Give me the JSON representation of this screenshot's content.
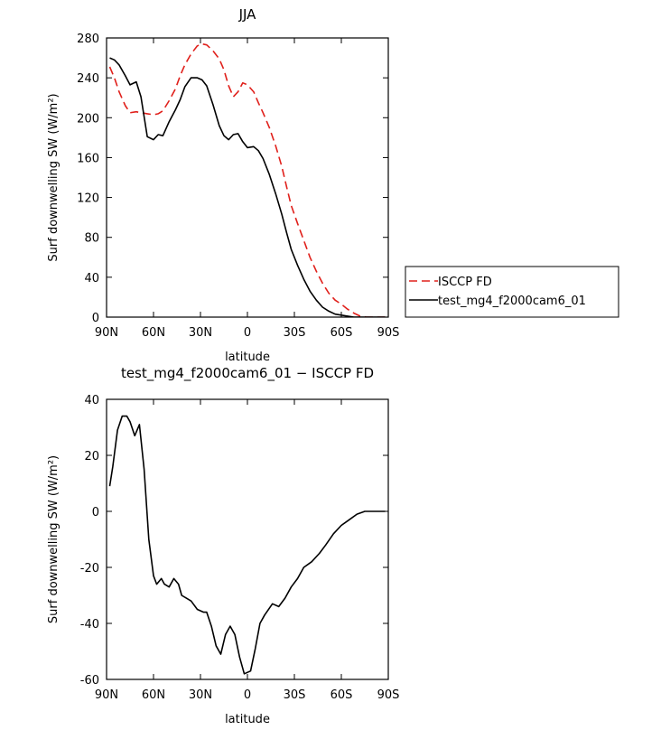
{
  "chart_data": [
    {
      "type": "line",
      "title": "JJA",
      "xlabel": "latitude",
      "ylabel": "Surf downwelling SW (W/m²)",
      "xlim": [
        90,
        -90
      ],
      "ylim": [
        0,
        280
      ],
      "xticks": [
        {
          "value": 90,
          "label": "90N"
        },
        {
          "value": 60,
          "label": "60N"
        },
        {
          "value": 30,
          "label": "30N"
        },
        {
          "value": 0,
          "label": "0"
        },
        {
          "value": -30,
          "label": "30S"
        },
        {
          "value": -60,
          "label": "60S"
        },
        {
          "value": -90,
          "label": "90S"
        }
      ],
      "yticks": [
        0,
        40,
        80,
        120,
        160,
        200,
        240,
        280
      ],
      "legend": "right",
      "series": [
        {
          "name": "ISCCP FD",
          "color": "#e0201b",
          "dash": "dashed",
          "x": [
            88,
            85,
            82,
            78,
            75,
            71,
            68,
            64,
            60,
            57,
            54,
            50,
            46,
            43,
            40,
            36,
            32,
            29,
            26,
            22,
            18,
            15,
            12,
            9,
            6,
            3,
            0,
            -4,
            -7,
            -10,
            -14,
            -18,
            -22,
            -25,
            -28,
            -32,
            -36,
            -40,
            -44,
            -48,
            -52,
            -56,
            -60,
            -64,
            -68,
            -72,
            -76,
            -80,
            -85,
            -88
          ],
          "y": [
            251,
            240,
            226,
            212,
            205,
            206,
            205,
            204,
            203,
            204,
            207,
            217,
            229,
            242,
            253,
            264,
            272,
            274,
            273,
            267,
            259,
            248,
            232,
            221,
            226,
            235,
            233,
            226,
            215,
            205,
            190,
            172,
            151,
            131,
            112,
            94,
            77,
            60,
            46,
            34,
            24,
            17,
            13,
            8,
            4,
            1,
            0,
            0,
            0,
            0
          ]
        },
        {
          "name": "test_mg4_f2000cam6_01",
          "color": "#000000",
          "dash": "solid",
          "x": [
            88,
            85,
            82,
            78,
            75,
            71,
            68,
            64,
            60,
            57,
            54,
            50,
            46,
            43,
            40,
            36,
            32,
            29,
            26,
            22,
            18,
            15,
            12,
            9,
            6,
            3,
            0,
            -4,
            -7,
            -10,
            -14,
            -18,
            -22,
            -25,
            -28,
            -32,
            -36,
            -40,
            -44,
            -48,
            -52,
            -56,
            -60,
            -64,
            -68,
            -72,
            -76,
            -80,
            -85,
            -88
          ],
          "y": [
            260,
            258,
            253,
            242,
            233,
            236,
            221,
            181,
            178,
            183,
            182,
            196,
            208,
            218,
            231,
            240,
            240,
            238,
            232,
            213,
            192,
            182,
            178,
            183,
            184,
            176,
            170,
            171,
            167,
            159,
            143,
            124,
            103,
            85,
            68,
            52,
            38,
            26,
            17,
            10,
            6,
            3,
            2,
            1,
            0,
            0,
            0,
            0,
            0,
            0
          ]
        }
      ]
    },
    {
      "type": "line",
      "title": "test_mg4_f2000cam6_01 − ISCCP FD",
      "xlabel": "latitude",
      "ylabel": "Surf downwelling SW (W/m²)",
      "xlim": [
        90,
        -90
      ],
      "ylim": [
        -60,
        40
      ],
      "xticks": [
        {
          "value": 90,
          "label": "90N"
        },
        {
          "value": 60,
          "label": "60N"
        },
        {
          "value": 30,
          "label": "30N"
        },
        {
          "value": 0,
          "label": "0"
        },
        {
          "value": -30,
          "label": "30S"
        },
        {
          "value": -60,
          "label": "60S"
        },
        {
          "value": -90,
          "label": "90S"
        }
      ],
      "yticks": [
        -60,
        -40,
        -20,
        0,
        20,
        40
      ],
      "series": [
        {
          "color": "#000000",
          "dash": "solid",
          "x": [
            88,
            86,
            83,
            80,
            77,
            75,
            72,
            69,
            66,
            63,
            60,
            58,
            55,
            53,
            50,
            47,
            44,
            42,
            39,
            36,
            32,
            28,
            26,
            23,
            20,
            17,
            14,
            11,
            8,
            5,
            2,
            -2,
            -5,
            -8,
            -11,
            -16,
            -20,
            -24,
            -28,
            -32,
            -36,
            -41,
            -46,
            -50,
            -55,
            -60,
            -65,
            -70,
            -75,
            -80,
            -84,
            -88
          ],
          "y": [
            9,
            16,
            29,
            34,
            34,
            32,
            27,
            31,
            15,
            -10,
            -23,
            -26,
            -24,
            -26,
            -27,
            -24,
            -26,
            -30,
            -31,
            -32,
            -35,
            -36,
            -36,
            -41,
            -48,
            -51,
            -44,
            -41,
            -44,
            -52,
            -58,
            -57,
            -49,
            -40,
            -37,
            -33,
            -34,
            -31,
            -27,
            -24,
            -20,
            -18,
            -15,
            -12,
            -8,
            -5,
            -3,
            -1,
            0,
            0,
            0,
            0
          ]
        }
      ]
    }
  ]
}
